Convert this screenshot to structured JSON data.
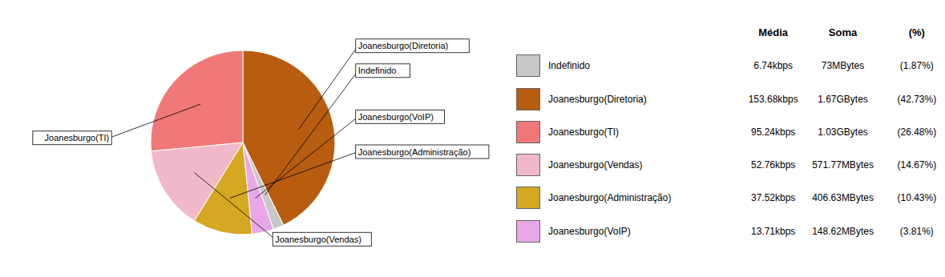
{
  "chart_data": {
    "type": "pie",
    "categories": [
      "Joanesburgo(Diretoria)",
      "Indefinido",
      "Joanesburgo(VoIP)",
      "Joanesburgo(Administração)",
      "Joanesburgo(Vendas)",
      "Joanesburgo(TI)"
    ],
    "values": [
      42.73,
      1.87,
      3.81,
      10.43,
      14.67,
      26.48
    ],
    "colors": [
      "#b85c10",
      "#c8c8c8",
      "#e8a8e8",
      "#d4a820",
      "#f0b8c8",
      "#f07878"
    ],
    "table": {
      "header": [
        "Média",
        "Soma",
        "(%)"
      ],
      "rows": [
        {
          "name": "Indefinido",
          "color": "#c8c8c8",
          "media": "6.74kbps",
          "soma": "73MBytes",
          "pct": "(1.87%)"
        },
        {
          "name": "Joanesburgo(Diretoria)",
          "color": "#b85c10",
          "media": "153.68kbps",
          "soma": "1.67GBytes",
          "pct": "(42.73%)"
        },
        {
          "name": "Joanesburgo(TI)",
          "color": "#f07878",
          "media": "95.24kbps",
          "soma": "1.03GBytes",
          "pct": "(26.48%)"
        },
        {
          "name": "Joanesburgo(Vendas)",
          "color": "#f0b8c8",
          "media": "52.76kbps",
          "soma": "571.77MBytes",
          "pct": "(14.67%)"
        },
        {
          "name": "Joanesburgo(Administração)",
          "color": "#d4a820",
          "media": "37.52kbps",
          "soma": "406.63MBytes",
          "pct": "(10.43%)"
        },
        {
          "name": "Joanesburgo(VoIP)",
          "color": "#e8a8e8",
          "media": "13.71kbps",
          "soma": "148.62MBytes",
          "pct": "(3.81%)"
        }
      ]
    }
  }
}
